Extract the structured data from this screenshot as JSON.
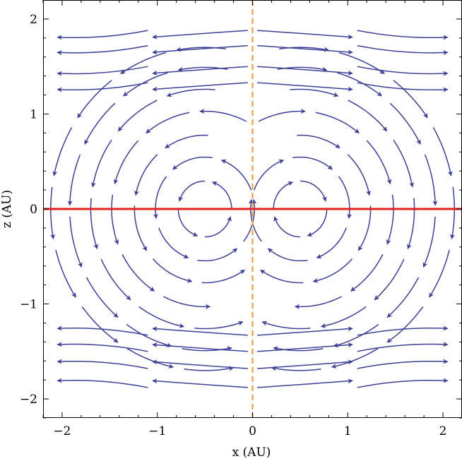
{
  "chart_data": {
    "type": "vector-field-streamplot",
    "xlabel": "x (AU)",
    "ylabel": "z (AU)",
    "xlim": [
      -2.2,
      2.2
    ],
    "ylim": [
      -2.2,
      2.2
    ],
    "x_ticks": [
      {
        "value": -2,
        "label": "−2"
      },
      {
        "value": -1,
        "label": "−1"
      },
      {
        "value": 0,
        "label": "0"
      },
      {
        "value": 1,
        "label": "1"
      },
      {
        "value": 2,
        "label": "2"
      }
    ],
    "y_ticks": [
      {
        "value": -2,
        "label": "−2"
      },
      {
        "value": -1,
        "label": "−1"
      },
      {
        "value": 0,
        "label": "0"
      },
      {
        "value": 1,
        "label": "1"
      },
      {
        "value": 2,
        "label": "2"
      }
    ],
    "minor_tick_step": 0.2,
    "colors": {
      "stream": "#3b3f96",
      "midplane": "#e4201f",
      "axis_line": "#f0952b",
      "frame": "#000000"
    },
    "lines": [
      {
        "orientation": "horizontal",
        "at": 0,
        "style": "solid"
      },
      {
        "orientation": "vertical",
        "at": 0,
        "style": "dashed"
      }
    ],
    "streamlines": {
      "left_loops": {
        "center": [
          -0.5,
          0
        ],
        "direction": "counterclockwise",
        "radii_x": [
          0.28,
          0.52,
          0.74,
          0.98,
          1.2,
          1.42,
          1.62
        ],
        "aspect": 1.05
      },
      "right_loops": {
        "center": [
          0.5,
          0
        ],
        "direction": "clockwise",
        "radii_x": [
          0.28,
          0.52,
          0.74,
          0.98,
          1.2,
          1.42,
          1.62
        ],
        "aspect": 1.05
      },
      "outer_rows_y": [
        1.88,
        1.72,
        1.5,
        1.33,
        -1.33,
        -1.5,
        -1.68,
        -1.88
      ]
    }
  }
}
